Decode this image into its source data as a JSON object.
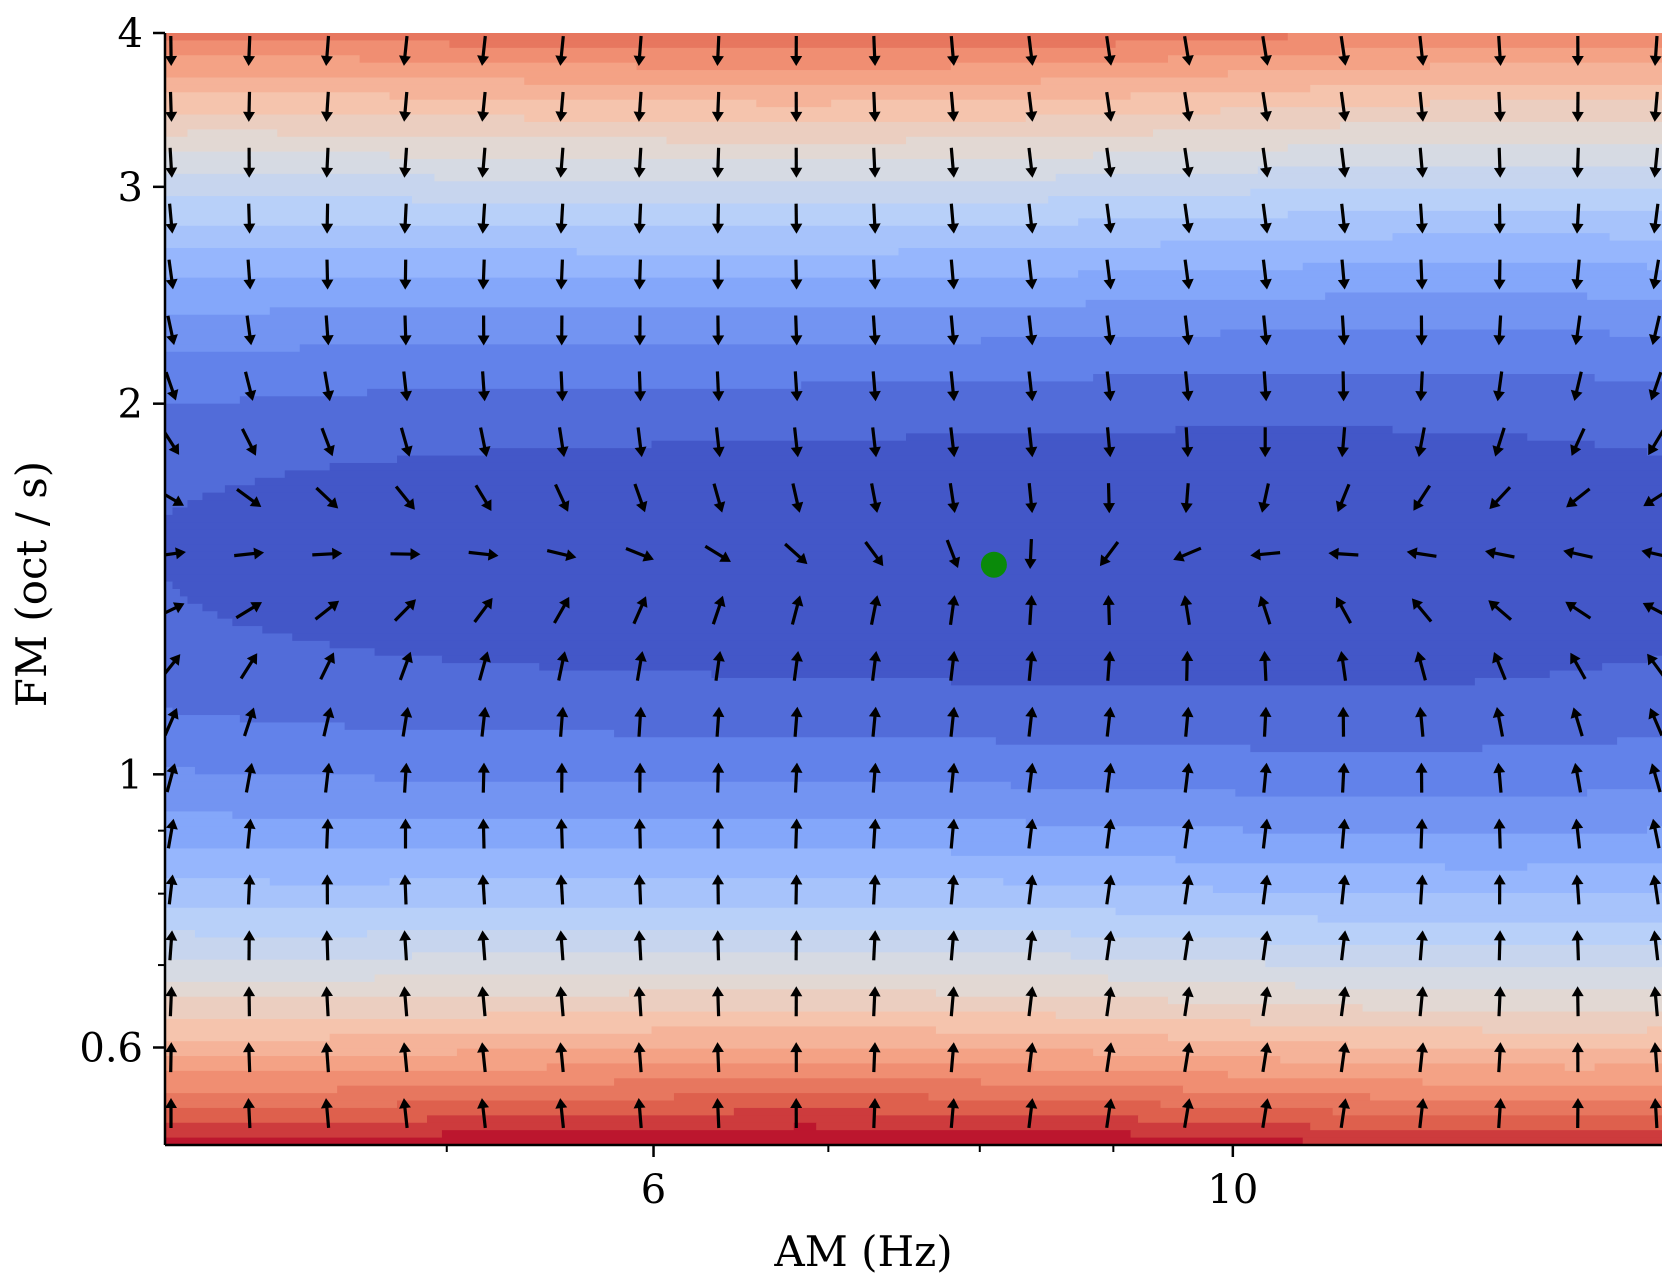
{
  "chart_data": {
    "type": "contour-quiver",
    "title": "",
    "xlabel": "AM (Hz)",
    "ylabel": "FM (oct / s)",
    "x_scale": "log",
    "y_scale": "log",
    "xlim": [
      3.9,
      14.6
    ],
    "ylim": [
      0.5,
      4.0
    ],
    "x_major_ticks": [
      {
        "value": 6,
        "label": "6"
      },
      {
        "value": 10,
        "label": "10"
      }
    ],
    "x_minor_ticks": [
      5,
      7,
      8,
      9
    ],
    "y_major_ticks": [
      {
        "value": 0.6,
        "label": "0.6"
      },
      {
        "value": 1,
        "label": "1"
      },
      {
        "value": 2,
        "label": "2"
      },
      {
        "value": 3,
        "label": "3"
      },
      {
        "value": 4,
        "label": "4"
      }
    ],
    "y_minor_ticks": [
      0.7,
      0.8,
      0.9
    ],
    "optimum_marker": {
      "am_hz": 8.1,
      "fm_oct_s": 1.48,
      "color": "#0a8a0a"
    },
    "colormap": "coolwarm",
    "colormap_note_low": "#3b4cc0",
    "colormap_note_high": "#b40426",
    "grid": false,
    "legend": "none"
  }
}
